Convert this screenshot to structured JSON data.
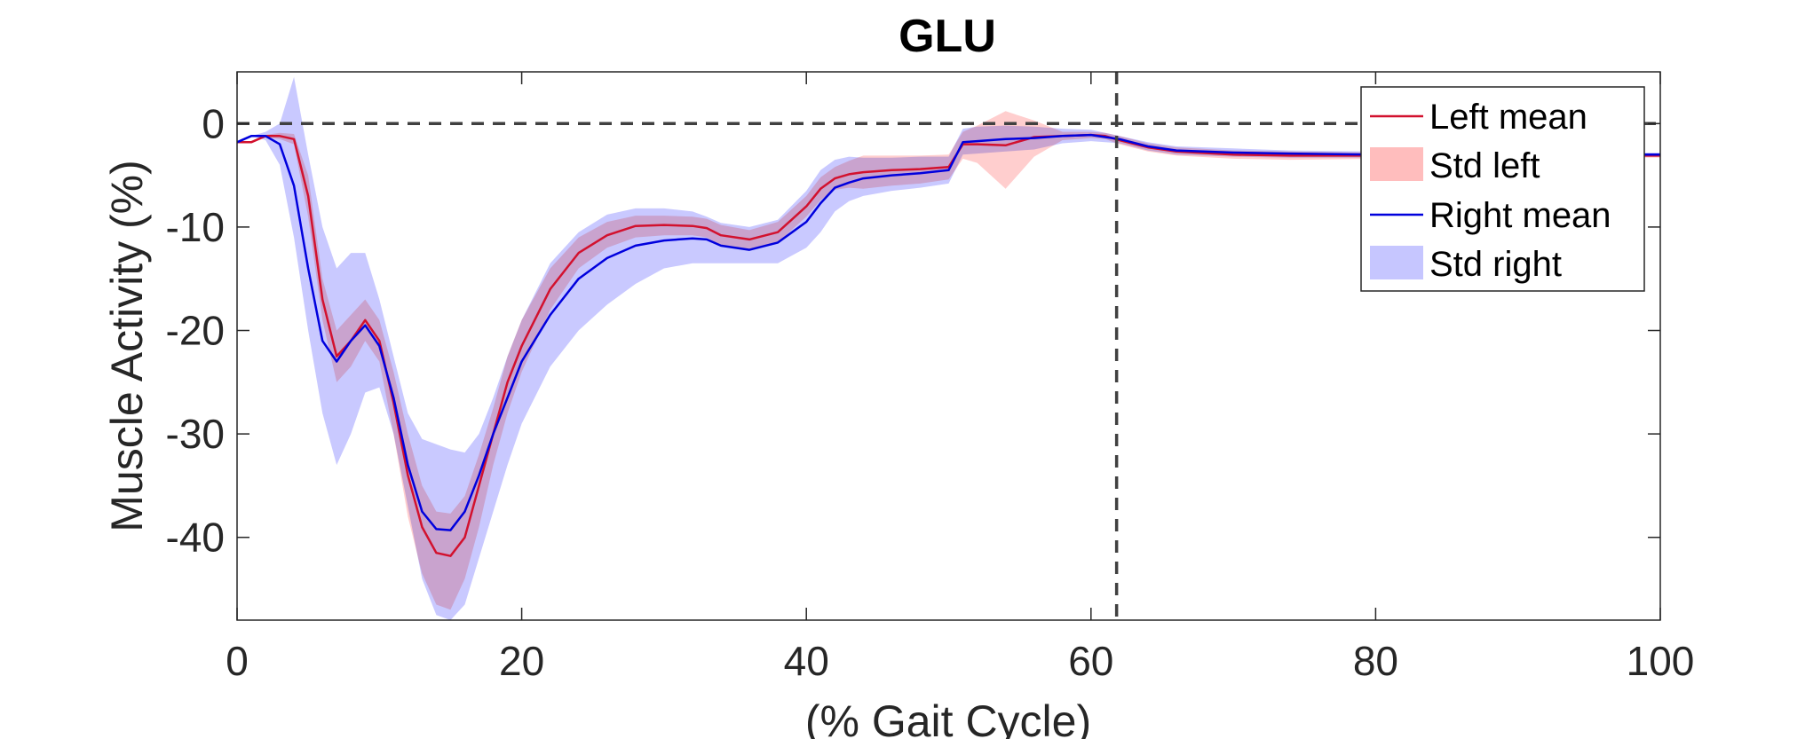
{
  "chart_data": {
    "type": "line",
    "title": "GLU",
    "xlabel": "(% Gait Cycle)",
    "ylabel": "Muscle Activity (%)",
    "xlim": [
      0,
      100
    ],
    "ylim": [
      -48,
      5
    ],
    "xticks": [
      "0",
      "20",
      "40",
      "60",
      "80",
      "100"
    ],
    "yticks": [
      "0",
      "-10",
      "-20",
      "-30",
      "-40"
    ],
    "grid": false,
    "legend_position": "top-right",
    "reference_lines": {
      "horizontal_y": 0,
      "vertical_x": 61.8
    },
    "x": [
      0,
      1,
      2,
      3,
      4,
      5,
      6,
      7,
      8,
      9,
      10,
      11,
      12,
      13,
      14,
      15,
      16,
      17,
      18,
      19,
      20,
      22,
      24,
      26,
      28,
      30,
      32,
      33,
      34,
      36,
      38,
      40,
      41,
      42,
      43,
      44,
      46,
      48,
      50,
      51,
      52,
      54,
      56,
      58,
      60,
      61,
      62,
      64,
      66,
      70,
      74,
      80,
      90,
      100
    ],
    "series": [
      {
        "name": "Left mean",
        "color": "#d2112e",
        "mean": [
          -1.8,
          -1.8,
          -1.2,
          -1.2,
          -1.5,
          -7,
          -17,
          -22.5,
          -21,
          -19,
          -21,
          -27,
          -34,
          -39,
          -41.5,
          -41.8,
          -40,
          -35,
          -30,
          -25,
          -21.5,
          -16,
          -12.5,
          -10.8,
          -9.9,
          -9.8,
          -9.9,
          -10.1,
          -10.8,
          -11.2,
          -10.5,
          -8,
          -6.3,
          -5.3,
          -4.9,
          -4.7,
          -4.5,
          -4.4,
          -4.2,
          -2,
          -2,
          -2.1,
          -1.3,
          -1.2,
          -1.1,
          -1.2,
          -1.6,
          -2.3,
          -2.7,
          -3,
          -3.1,
          -3.1,
          -3.1,
          -3.1
        ]
      },
      {
        "name": "Right mean",
        "color": "#0000dd",
        "mean": [
          -1.8,
          -1.2,
          -1.2,
          -2,
          -6,
          -14,
          -21,
          -23,
          -21,
          -19.5,
          -21.5,
          -26.5,
          -33,
          -37.5,
          -39.2,
          -39.3,
          -37.5,
          -34,
          -30,
          -26.5,
          -23,
          -18.5,
          -15,
          -13,
          -11.8,
          -11.3,
          -11.1,
          -11.2,
          -11.8,
          -12.2,
          -11.5,
          -9.5,
          -7.7,
          -6.2,
          -5.7,
          -5.3,
          -5,
          -4.8,
          -4.5,
          -1.8,
          -1.7,
          -1.5,
          -1.4,
          -1.2,
          -1.1,
          -1.3,
          -1.5,
          -2.2,
          -2.6,
          -2.8,
          -2.9,
          -3,
          -3,
          -3
        ]
      }
    ],
    "bands": [
      {
        "name": "Std left",
        "color": "#ffbdbd",
        "upper": [
          -1.8,
          -1.8,
          -1.1,
          -0.9,
          -1,
          -5,
          -15,
          -20,
          -18.5,
          -17,
          -19,
          -24,
          -30,
          -35,
          -37.5,
          -37.7,
          -36,
          -32,
          -27.5,
          -22.5,
          -19,
          -14,
          -11,
          -9.5,
          -8.9,
          -8.9,
          -9,
          -9.2,
          -9.8,
          -10.3,
          -9.5,
          -7,
          -5.2,
          -4.2,
          -3.6,
          -3.1,
          -3.1,
          -3.1,
          -3,
          -0.8,
          -0.2,
          1.2,
          0.3,
          -0.8,
          -0.8,
          -0.9,
          -1.2,
          -1.9,
          -2.3,
          -2.6,
          -2.7,
          -2.8,
          -2.9,
          -2.9
        ],
        "lower": [
          -1.8,
          -1.8,
          -1.3,
          -1.5,
          -2,
          -9,
          -19,
          -25,
          -23.5,
          -21,
          -23,
          -30,
          -38,
          -43.5,
          -46.5,
          -47,
          -44,
          -39,
          -33,
          -28,
          -24,
          -18,
          -14,
          -12,
          -11,
          -10.8,
          -10.8,
          -11,
          -11.8,
          -12.1,
          -11.5,
          -9,
          -7.4,
          -6.4,
          -6.2,
          -6.3,
          -6,
          -5.8,
          -5.4,
          -3.4,
          -3.8,
          -6.3,
          -3.2,
          -1.6,
          -1.4,
          -1.5,
          -2,
          -2.7,
          -3.1,
          -3.4,
          -3.5,
          -3.4,
          -3.3,
          -3.3
        ]
      },
      {
        "name": "Std right",
        "color": "#c6c6ff",
        "upper": [
          -1.8,
          -1.2,
          -0.8,
          0,
          4.5,
          -3,
          -10,
          -14,
          -12.5,
          -12.5,
          -17,
          -22.5,
          -28,
          -30.5,
          -31,
          -31.5,
          -31.8,
          -30,
          -26.5,
          -22.5,
          -19,
          -13.5,
          -10.5,
          -8.8,
          -8.2,
          -8.2,
          -8.5,
          -9,
          -9.6,
          -10,
          -9.3,
          -6.5,
          -4.5,
          -3.5,
          -3.2,
          -3.3,
          -3.3,
          -3.2,
          -3.2,
          -0.5,
          -0.3,
          -0.2,
          -0.3,
          -0.5,
          -0.6,
          -0.9,
          -1.2,
          -1.8,
          -2.2,
          -2.4,
          -2.6,
          -2.7,
          -2.8,
          -2.8
        ],
        "lower": [
          -1.8,
          -1.2,
          -1.6,
          -4,
          -11,
          -20,
          -28,
          -33,
          -30,
          -26,
          -25.5,
          -30,
          -37,
          -44,
          -47.5,
          -48,
          -46.5,
          -42,
          -37.5,
          -33,
          -29,
          -23.5,
          -20,
          -17.5,
          -15.5,
          -14,
          -13.5,
          -13.5,
          -13.5,
          -13.5,
          -13.5,
          -12,
          -10.5,
          -8.5,
          -7.5,
          -7,
          -6.5,
          -6.2,
          -5.8,
          -3,
          -2.9,
          -2.7,
          -2.5,
          -1.9,
          -1.7,
          -1.8,
          -1.9,
          -2.6,
          -3,
          -3.2,
          -3.3,
          -3.3,
          -3.2,
          -3.2
        ]
      }
    ]
  }
}
